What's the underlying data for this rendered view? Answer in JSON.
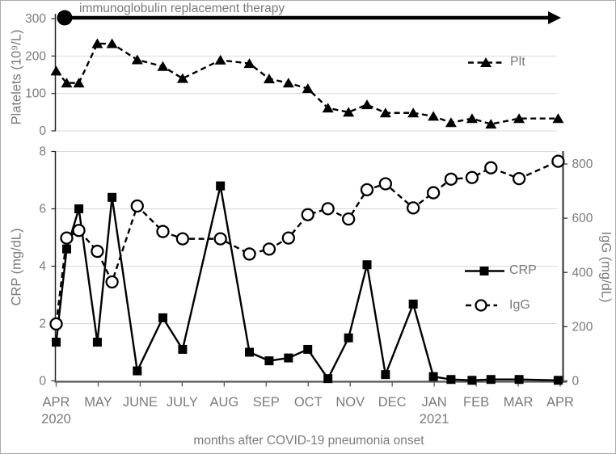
{
  "figure": {
    "annotation_label": "immunoglobulin replacement therapy",
    "caption": "months after COVID-19 pneumonia onset"
  },
  "colors": {
    "series": "#000000",
    "text": "#7a7a7a",
    "gridline": "#d9d9d9",
    "axis_dark": "#595959",
    "axis_black": "#262626",
    "background": "#ffffff"
  },
  "x_axis": {
    "tick_labels": [
      "APR",
      "MAY",
      "JUNE",
      "JULY",
      "AUG",
      "SEP",
      "OCT",
      "NOV",
      "DEC",
      "JAN",
      "FEB",
      "MAR",
      "APR"
    ],
    "year_labels": [
      {
        "month_index": 0,
        "label": "2020"
      },
      {
        "month_index": 9,
        "label": "2021"
      }
    ],
    "caption": "months after COVID-19 pneumonia onset"
  },
  "chart_data": [
    {
      "type": "line",
      "panel": "top",
      "ylabel": "Platelets (10⁹/L)",
      "ylim": [
        0,
        300
      ],
      "yticks": [
        0,
        100,
        200,
        300
      ],
      "grid": true,
      "legend": {
        "label": "Plt",
        "marker": "filled-triangle",
        "line": "dashed"
      },
      "x_months": [
        0,
        0.25,
        0.54,
        0.98,
        1.33,
        1.93,
        2.54,
        3.01,
        3.91,
        4.6,
        5.07,
        5.53,
        5.99,
        6.47,
        6.96,
        7.4,
        7.84,
        8.5,
        8.98,
        9.4,
        9.9,
        10.35,
        11.02,
        11.95
      ],
      "series": [
        {
          "name": "Plt",
          "marker": "filled-triangle",
          "line": "dashed",
          "values": [
            160,
            128,
            128,
            233,
            233,
            190,
            172,
            140,
            189,
            180,
            139,
            128,
            113,
            61,
            50,
            70,
            48,
            48,
            39,
            22,
            33,
            18,
            33,
            33
          ]
        }
      ],
      "annotation": {
        "label": "immunoglobulin replacement therapy",
        "start_marker": "filled-circle",
        "arrow": "right",
        "y_value": 300
      }
    },
    {
      "type": "line",
      "panel": "bottom",
      "ylabel_left": "CRP (mg/dL)",
      "ylabel_right": "IgG (mg/dL)",
      "ylim_left": [
        0,
        8
      ],
      "yticks_left": [
        0,
        2,
        4,
        6,
        8
      ],
      "ylim_right": [
        0,
        850
      ],
      "yticks_right": [
        0,
        200,
        400,
        600,
        800
      ],
      "grid": true,
      "legend": [
        {
          "label": "CRP",
          "marker": "filled-square",
          "line": "solid"
        },
        {
          "label": "IgG",
          "marker": "open-circle",
          "line": "dashed"
        }
      ],
      "x_months": [
        0,
        0.25,
        0.54,
        0.98,
        1.33,
        1.93,
        2.54,
        3.01,
        3.91,
        4.6,
        5.07,
        5.53,
        5.99,
        6.47,
        6.96,
        7.4,
        7.84,
        8.5,
        8.98,
        9.4,
        9.9,
        10.35,
        11.02,
        11.95
      ],
      "series": [
        {
          "name": "CRP",
          "axis": "left",
          "marker": "filled-square",
          "line": "solid",
          "values": [
            1.35,
            4.6,
            6.0,
            1.35,
            6.4,
            0.35,
            2.2,
            1.1,
            6.8,
            1.0,
            0.7,
            0.8,
            1.1,
            0.08,
            1.5,
            4.05,
            0.22,
            2.68,
            0.15,
            0.05,
            0.02,
            0.05,
            0.05,
            0.02
          ]
        },
        {
          "name": "IgG",
          "axis": "right",
          "marker": "open-circle",
          "line": "dashed",
          "values": [
            210,
            527,
            555,
            478,
            365,
            645,
            551,
            524,
            524,
            468,
            486,
            527,
            613,
            635,
            597,
            705,
            727,
            638,
            694,
            744,
            750,
            786,
            746,
            810
          ]
        }
      ]
    }
  ]
}
